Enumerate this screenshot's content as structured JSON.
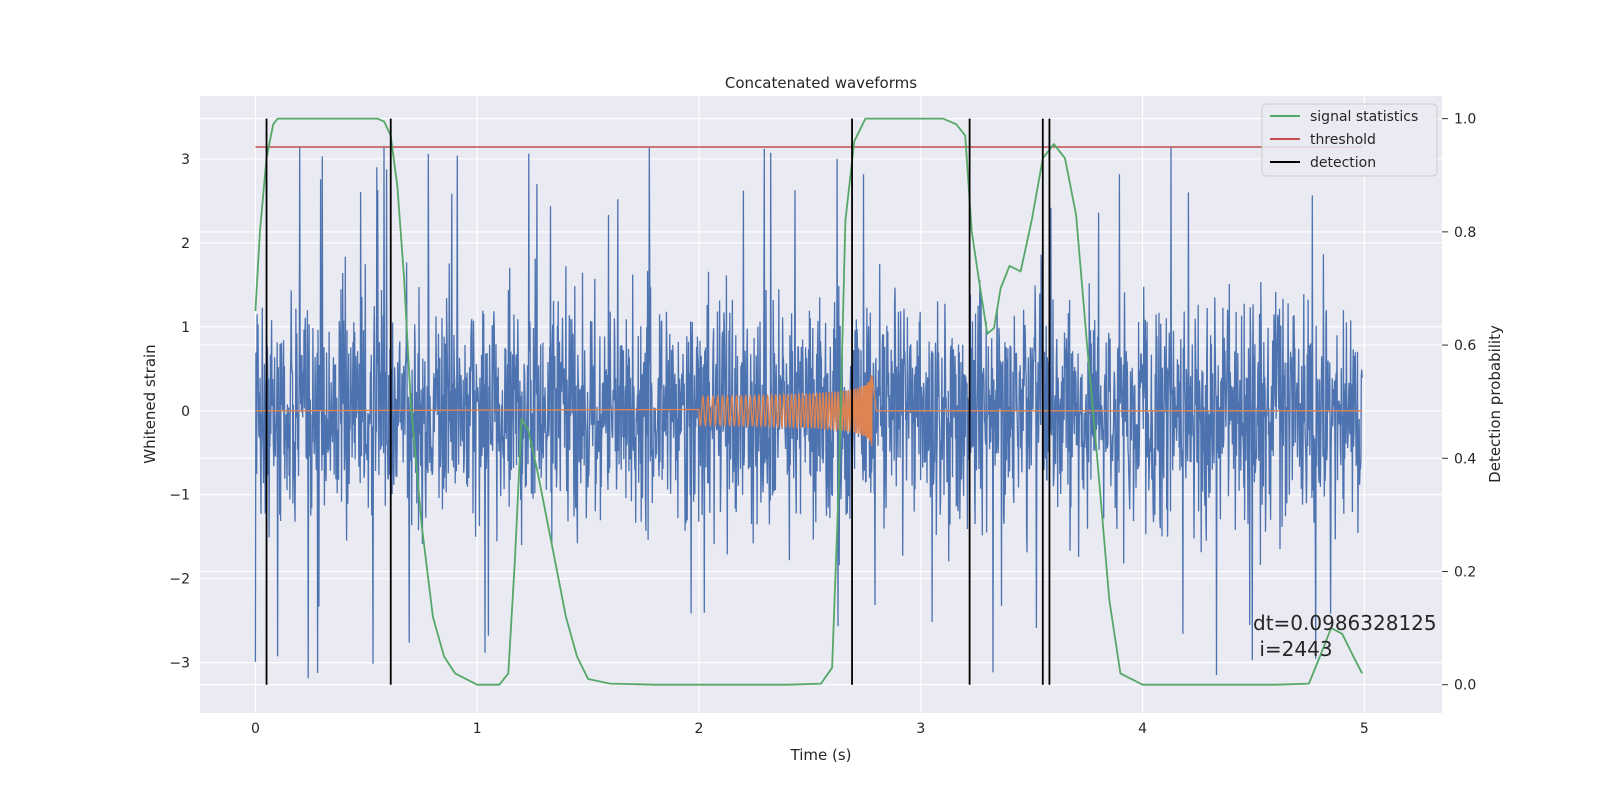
{
  "chart_data": {
    "type": "line",
    "title": "Concatenated waveforms",
    "xlabel": "Time (s)",
    "ylabel": "Whitened strain",
    "y2label": "Detection probability",
    "xlim": [
      -0.25,
      5.35
    ],
    "ylim": [
      -3.6,
      3.75
    ],
    "y2lim": [
      -0.05,
      1.04
    ],
    "x_ticks": [
      0,
      1,
      2,
      3,
      4,
      5
    ],
    "y_ticks": [
      -3,
      -2,
      -1,
      0,
      1,
      2,
      3
    ],
    "y2_ticks": [
      "0.0",
      "0.2",
      "0.4",
      "0.6",
      "0.8",
      "1.0"
    ],
    "y_tick_labels": [
      "−3",
      "−2",
      "−1",
      "0",
      "1",
      "2",
      "3"
    ],
    "grid": true,
    "legend_position": "top-right",
    "colors": {
      "background": "#eaeaf2",
      "strain": "#4c72b0",
      "injection": "#dd8452",
      "signal_statistics": "#55a868",
      "threshold": "#c44e52",
      "detection": "#000000"
    },
    "series": [
      {
        "name": "signal statistics",
        "axis": "right",
        "x": [
          0.0,
          0.02,
          0.05,
          0.08,
          0.1,
          0.13,
          0.2,
          0.3,
          0.4,
          0.5,
          0.55,
          0.58,
          0.61,
          0.64,
          0.67,
          0.7,
          0.75,
          0.8,
          0.85,
          0.9,
          1.0,
          1.1,
          1.14,
          1.17,
          1.2,
          1.23,
          1.27,
          1.3,
          1.35,
          1.4,
          1.45,
          1.5,
          1.6,
          1.8,
          2.0,
          2.2,
          2.4,
          2.55,
          2.6,
          2.63,
          2.66,
          2.7,
          2.75,
          2.8,
          2.9,
          3.0,
          3.1,
          3.16,
          3.2,
          3.23,
          3.26,
          3.3,
          3.33,
          3.36,
          3.4,
          3.45,
          3.5,
          3.55,
          3.6,
          3.65,
          3.7,
          3.75,
          3.8,
          3.85,
          3.9,
          4.0,
          4.2,
          4.4,
          4.6,
          4.75,
          4.8,
          4.85,
          4.9,
          4.95,
          4.99
        ],
        "values": [
          0.66,
          0.8,
          0.93,
          0.99,
          1.0,
          1.0,
          1.0,
          1.0,
          1.0,
          1.0,
          1.0,
          0.995,
          0.97,
          0.88,
          0.72,
          0.5,
          0.28,
          0.12,
          0.05,
          0.02,
          0.0,
          0.0,
          0.02,
          0.22,
          0.47,
          0.45,
          0.38,
          0.32,
          0.22,
          0.12,
          0.05,
          0.01,
          0.002,
          0.0,
          0.0,
          0.0,
          0.0,
          0.002,
          0.03,
          0.35,
          0.82,
          0.96,
          1.0,
          1.0,
          1.0,
          1.0,
          1.0,
          0.99,
          0.97,
          0.8,
          0.72,
          0.62,
          0.63,
          0.7,
          0.74,
          0.73,
          0.82,
          0.93,
          0.955,
          0.93,
          0.83,
          0.6,
          0.38,
          0.15,
          0.02,
          0.0,
          0.0,
          0.0,
          0.0,
          0.002,
          0.05,
          0.1,
          0.09,
          0.05,
          0.02
        ]
      },
      {
        "name": "threshold",
        "axis": "right",
        "x": [
          0.0,
          4.99
        ],
        "values": [
          0.95,
          0.95
        ]
      },
      {
        "name": "detection",
        "axis": "right",
        "type": "vlines",
        "x": [
          0.05,
          0.61,
          2.69,
          3.22,
          3.55,
          3.58
        ],
        "range": [
          0.0,
          1.0
        ]
      },
      {
        "name": "",
        "axis": "left",
        "type": "noise",
        "x_range": [
          0.0,
          4.99
        ],
        "peak_max": 3.4,
        "peak_min": -3.3
      },
      {
        "name": "",
        "axis": "left",
        "type": "chirp",
        "x_range": [
          2.0,
          2.8
        ],
        "peak": 0.48
      }
    ],
    "annotations": [
      {
        "line1": "dt=0.0986328125",
        "line2": " i=2443"
      }
    ]
  }
}
